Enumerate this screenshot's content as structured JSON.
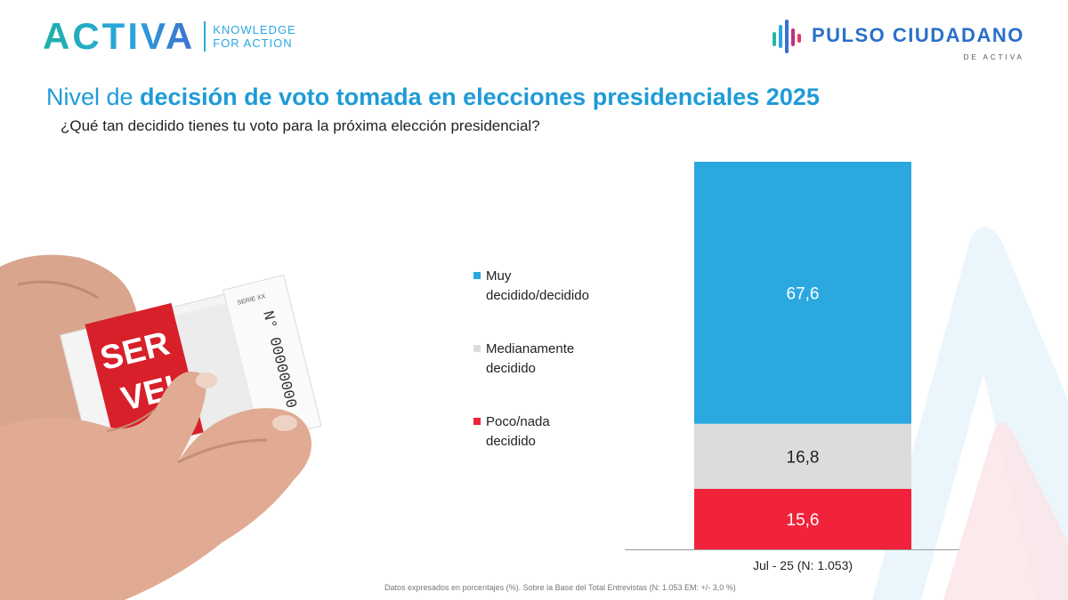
{
  "header": {
    "brand": "ACTIVA",
    "tagline_line1": "KNOWLEDGE",
    "tagline_line2": "FOR ACTION",
    "pulso_title": "PULSO CIUDADANO",
    "pulso_sub": "DE ACTIVA"
  },
  "title_prefix": "Nivel de ",
  "title_bold": "decisión de voto tomada en elecciones presidenciales 2025",
  "subtitle": "¿Qué tan decidido tienes tu voto para la próxima elección presidencial?",
  "photo": {
    "ballot_text_1": "SER",
    "ballot_text_2": "VEL",
    "serie_label": "SERIE XX",
    "number_label": "N° 00000000"
  },
  "colors": {
    "muy": "#2ba8e0",
    "medio": "#dcdcdc",
    "poco": "#f0233a",
    "accent": "#1e9bd7"
  },
  "chart_data": {
    "type": "bar",
    "stacked": true,
    "categories": [
      "Jul - 25 (N: 1.053)"
    ],
    "series": [
      {
        "name": "Muy decidido/decidido",
        "values": [
          67.6
        ],
        "label": "67,6",
        "color": "#2ba8e0"
      },
      {
        "name": "Medianamente decidido",
        "values": [
          16.8
        ],
        "label": "16,8",
        "color": "#dcdcdc"
      },
      {
        "name": "Poco/nada decidido",
        "values": [
          15.6
        ],
        "label": "15,6",
        "color": "#f0233a"
      }
    ],
    "ylim": [
      0,
      100
    ],
    "legend_position": "left"
  },
  "legend": [
    {
      "label": "Muy\ndecidido/decidido",
      "color": "#2ba8e0"
    },
    {
      "label": "Medianamente\ndecidido",
      "color": "#dcdcdc"
    },
    {
      "label": "Poco/nada\ndecidido",
      "color": "#f0233a"
    }
  ],
  "footnote": "Datos expresados en porcentajes (%). Sobre la Base del Total Entrevistas (N: 1.053  EM: +/- 3,0 %)"
}
